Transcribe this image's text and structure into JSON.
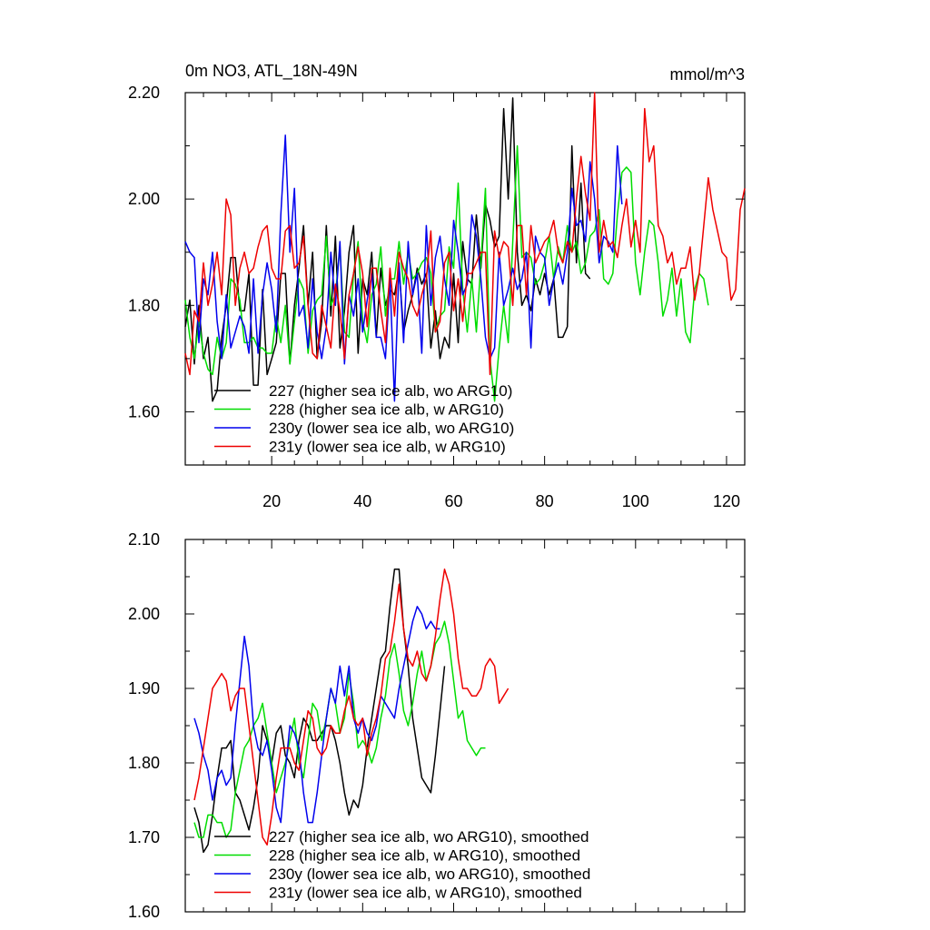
{
  "chart_data": [
    {
      "type": "line",
      "title": "0m NO3, ATL_18N-49N",
      "units": "mmol/m^3",
      "xlabel": "",
      "ylabel": "",
      "xlim": [
        1,
        124
      ],
      "ylim": [
        1.5,
        2.2
      ],
      "xticks": [
        20,
        40,
        60,
        80,
        100,
        120
      ],
      "yticks": [
        1.6,
        1.8,
        2.0,
        2.2
      ],
      "ytick_labels": [
        "1.60",
        "1.80",
        "2.00",
        "2.20"
      ],
      "grid": false,
      "legend_position": "bottom-left",
      "series": [
        {
          "name": "227 (higher sea ice alb, wo ARG10)",
          "color": "#000000",
          "x_start": 1,
          "values": [
            1.76,
            1.81,
            1.69,
            1.8,
            1.7,
            1.74,
            1.62,
            1.64,
            1.74,
            1.8,
            1.89,
            1.89,
            1.79,
            1.79,
            1.86,
            1.65,
            1.65,
            1.83,
            1.67,
            1.7,
            1.73,
            1.86,
            1.86,
            1.69,
            1.8,
            1.87,
            1.95,
            1.8,
            1.9,
            1.7,
            1.77,
            1.95,
            1.78,
            1.93,
            1.72,
            1.79,
            1.9,
            1.95,
            1.71,
            1.85,
            1.82,
            1.9,
            1.74,
            1.87,
            1.8,
            1.83,
            1.82,
            1.87,
            1.75,
            1.79,
            1.82,
            1.87,
            1.84,
            1.86,
            1.72,
            1.79,
            1.7,
            1.74,
            1.72,
            1.86,
            1.73,
            1.92,
            1.85,
            1.84,
            1.97,
            1.87,
            1.99,
            1.96,
            1.91,
            1.93,
            2.17,
            2.0,
            2.19,
            1.9,
            1.8,
            1.82,
            1.79,
            1.85,
            1.82,
            1.86,
            1.82,
            1.85,
            1.74,
            1.74,
            1.76,
            2.1,
            1.88,
            2.03,
            1.86,
            1.85
          ]
        },
        {
          "name": "228 (higher sea ice alb, w ARG10)",
          "color": "#00dd00",
          "x_start": 1,
          "values": [
            1.81,
            1.74,
            1.7,
            1.77,
            1.71,
            1.68,
            1.67,
            1.74,
            1.7,
            1.73,
            1.85,
            1.84,
            1.81,
            1.73,
            1.73,
            1.74,
            1.72,
            1.72,
            1.71,
            1.71,
            1.78,
            1.73,
            1.8,
            1.69,
            1.77,
            1.85,
            1.83,
            1.71,
            1.79,
            1.81,
            1.82,
            1.93,
            1.8,
            1.82,
            1.91,
            1.75,
            1.74,
            1.86,
            1.92,
            1.77,
            1.73,
            1.82,
            1.84,
            1.91,
            1.78,
            1.85,
            1.85,
            1.92,
            1.84,
            1.9,
            1.85,
            1.86,
            1.88,
            1.89,
            1.86,
            1.75,
            1.78,
            1.79,
            1.91,
            1.87,
            2.03,
            1.83,
            1.75,
            1.85,
            1.75,
            1.88,
            2.02,
            1.7,
            1.62,
            1.72,
            1.8,
            1.73,
            1.92,
            2.1,
            1.89,
            1.9,
            1.89,
            1.84,
            1.85,
            1.88,
            1.93,
            1.85,
            1.91,
            1.88,
            1.95,
            1.9,
            1.92,
            1.86,
            1.88,
            1.93,
            1.94,
            1.98,
            1.85,
            1.84,
            1.86,
            1.97,
            2.05,
            2.06,
            2.05,
            1.88,
            1.82,
            1.9,
            1.96,
            1.95,
            1.88,
            1.78,
            1.81,
            1.87,
            1.78,
            1.85,
            1.75,
            1.73,
            1.83,
            1.86,
            1.85,
            1.8
          ]
        },
        {
          "name": "230y (lower sea ice alb, wo ARG10)",
          "color": "#0000ee",
          "x_start": 1,
          "values": [
            1.92,
            1.9,
            1.89,
            1.73,
            1.85,
            1.82,
            1.9,
            1.77,
            1.7,
            1.82,
            1.72,
            1.75,
            1.78,
            1.76,
            1.71,
            1.85,
            1.71,
            1.82,
            1.88,
            1.83,
            1.75,
            1.97,
            2.12,
            1.9,
            2.02,
            1.78,
            1.8,
            1.72,
            1.85,
            1.75,
            1.7,
            1.76,
            1.9,
            1.8,
            1.92,
            1.69,
            1.82,
            1.78,
            1.85,
            1.75,
            1.81,
            1.86,
            1.74,
            1.74,
            1.7,
            1.85,
            1.62,
            1.88,
            1.73,
            1.92,
            1.82,
            1.86,
            1.71,
            1.95,
            1.8,
            1.89,
            1.93,
            1.85,
            1.8,
            1.96,
            1.9,
            1.82,
            1.84,
            1.97,
            1.93,
            1.85,
            1.74,
            1.7,
            1.72,
            1.9,
            1.8,
            1.83,
            1.87,
            1.83,
            1.85,
            1.9,
            1.72,
            1.93,
            1.9,
            1.89,
            1.8,
            1.85,
            1.88,
            1.84,
            1.9,
            2.02,
            1.95,
            1.96,
            1.92,
            2.07,
            2.0,
            1.88,
            1.93,
            1.92,
            1.9,
            2.1,
            1.99
          ]
        },
        {
          "name": "231y (lower sea ice alb, w ARG10)",
          "color": "#ee0000",
          "x_start": 1,
          "values": [
            1.71,
            1.67,
            1.79,
            1.77,
            1.88,
            1.8,
            1.84,
            1.9,
            1.82,
            2.0,
            1.97,
            1.8,
            1.87,
            1.9,
            1.86,
            1.87,
            1.91,
            1.94,
            1.95,
            1.87,
            1.85,
            1.85,
            1.94,
            1.95,
            1.87,
            1.88,
            1.93,
            1.8,
            1.71,
            1.7,
            1.8,
            1.76,
            1.72,
            1.84,
            1.79,
            1.7,
            1.82,
            1.86,
            1.91,
            1.86,
            1.76,
            1.87,
            1.87,
            1.79,
            1.73,
            1.87,
            1.78,
            1.9,
            1.87,
            1.85,
            1.8,
            1.78,
            1.82,
            1.85,
            1.94,
            1.75,
            1.77,
            1.88,
            1.9,
            1.79,
            1.85,
            1.77,
            1.86,
            1.86,
            1.88,
            1.9,
            1.9,
            1.67,
            1.94,
            1.89,
            1.92,
            1.91,
            1.8,
            1.95,
            1.95,
            1.82,
            1.95,
            1.88,
            1.9,
            1.92,
            1.93,
            1.96,
            1.9,
            1.88,
            1.92,
            1.9,
            2.0,
            2.08,
            2.01,
            1.96,
            2.2,
            1.9,
            1.96,
            1.91,
            1.92,
            1.89,
            1.95,
            2.0,
            1.91,
            1.96,
            1.9,
            2.17,
            2.07,
            2.1,
            1.95,
            1.93,
            1.88,
            1.9,
            1.84,
            1.87,
            1.87,
            1.91,
            1.81,
            1.86,
            1.95,
            2.04,
            1.98,
            1.94,
            1.9,
            1.89,
            1.81,
            1.83,
            1.98,
            2.02
          ]
        }
      ]
    },
    {
      "type": "line",
      "title": "",
      "xlabel": "",
      "ylabel": "",
      "xlim": [
        1,
        124
      ],
      "ylim": [
        1.6,
        2.1
      ],
      "xticks": [
        20,
        40,
        60,
        80,
        100,
        120
      ],
      "yticks": [
        1.6,
        1.7,
        1.8,
        1.9,
        2.0,
        2.1
      ],
      "ytick_labels": [
        "1.60",
        "1.70",
        "1.80",
        "1.90",
        "2.00",
        "2.10"
      ],
      "grid": false,
      "legend_position": "bottom-left",
      "series": [
        {
          "name": "227 (higher sea ice alb, wo ARG10), smoothed",
          "color": "#000000",
          "x_start": 3,
          "values": [
            1.74,
            1.72,
            1.68,
            1.69,
            1.73,
            1.78,
            1.82,
            1.82,
            1.83,
            1.76,
            1.75,
            1.73,
            1.71,
            1.74,
            1.78,
            1.85,
            1.83,
            1.8,
            1.84,
            1.85,
            1.81,
            1.8,
            1.78,
            1.83,
            1.86,
            1.85,
            1.83,
            1.83,
            1.84,
            1.85,
            1.85,
            1.83,
            1.8,
            1.76,
            1.73,
            1.75,
            1.74,
            1.77,
            1.82,
            1.86,
            1.9,
            1.94,
            1.95,
            2.01,
            2.06,
            2.06,
            1.98,
            1.93,
            1.86,
            1.82,
            1.78,
            1.77,
            1.76,
            1.81,
            1.87,
            1.93
          ]
        },
        {
          "name": "228 (higher sea ice alb, w ARG10), smoothed",
          "color": "#00dd00",
          "x_start": 3,
          "values": [
            1.72,
            1.7,
            1.7,
            1.73,
            1.73,
            1.72,
            1.72,
            1.7,
            1.71,
            1.76,
            1.79,
            1.82,
            1.83,
            1.85,
            1.86,
            1.88,
            1.84,
            1.8,
            1.76,
            1.78,
            1.8,
            1.83,
            1.86,
            1.8,
            1.78,
            1.83,
            1.88,
            1.87,
            1.83,
            1.86,
            1.9,
            1.88,
            1.84,
            1.86,
            1.92,
            1.88,
            1.82,
            1.83,
            1.82,
            1.8,
            1.82,
            1.86,
            1.89,
            1.94,
            1.96,
            1.92,
            1.87,
            1.85,
            1.88,
            1.92,
            1.95,
            1.91,
            1.93,
            1.96,
            1.97,
            1.99,
            1.96,
            1.91,
            1.86,
            1.87,
            1.83,
            1.82,
            1.81,
            1.82,
            1.82
          ]
        },
        {
          "name": "230y (lower sea ice alb, wo ARG10), smoothed",
          "color": "#0000ee",
          "x_start": 3,
          "values": [
            1.86,
            1.84,
            1.81,
            1.79,
            1.75,
            1.78,
            1.79,
            1.77,
            1.78,
            1.85,
            1.91,
            1.97,
            1.93,
            1.85,
            1.82,
            1.81,
            1.83,
            1.79,
            1.74,
            1.72,
            1.79,
            1.85,
            1.84,
            1.82,
            1.76,
            1.72,
            1.72,
            1.76,
            1.81,
            1.86,
            1.9,
            1.88,
            1.93,
            1.89,
            1.93,
            1.86,
            1.84,
            1.86,
            1.84,
            1.83,
            1.85,
            1.89,
            1.88,
            1.87,
            1.86,
            1.9,
            1.93,
            1.96,
            1.99,
            2.01,
            2.0,
            1.98,
            1.99,
            1.98,
            1.98
          ]
        },
        {
          "name": "231y (lower sea ice alb, w ARG10), smoothed",
          "color": "#ee0000",
          "x_start": 3,
          "values": [
            1.75,
            1.78,
            1.82,
            1.86,
            1.9,
            1.91,
            1.92,
            1.91,
            1.87,
            1.89,
            1.9,
            1.9,
            1.85,
            1.8,
            1.75,
            1.7,
            1.69,
            1.73,
            1.78,
            1.82,
            1.82,
            1.82,
            1.8,
            1.79,
            1.83,
            1.87,
            1.86,
            1.82,
            1.81,
            1.82,
            1.85,
            1.84,
            1.84,
            1.87,
            1.89,
            1.86,
            1.85,
            1.86,
            1.81,
            1.84,
            1.86,
            1.89,
            1.94,
            1.95,
            1.99,
            2.04,
            1.98,
            1.94,
            1.93,
            1.95,
            1.92,
            1.91,
            1.93,
            1.97,
            2.02,
            2.06,
            2.04,
            2.0,
            1.94,
            1.9,
            1.9,
            1.89,
            1.89,
            1.9,
            1.93,
            1.94,
            1.93,
            1.88,
            1.89,
            1.9
          ]
        }
      ]
    }
  ]
}
